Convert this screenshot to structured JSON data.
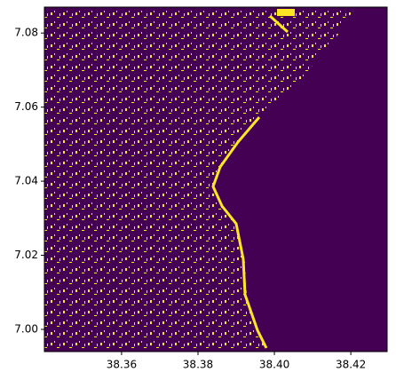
{
  "chart_data": {
    "type": "image",
    "xlim": [
      38.3398,
      38.4295
    ],
    "ylim": [
      6.994,
      7.087
    ],
    "xticks": [
      38.36,
      38.38,
      {
        "value": 38.4,
        "label": "38.40"
      },
      38.42
    ],
    "yticks": [
      {
        "value": 7,
        "label": "7.00"
      },
      7.02,
      7.04,
      7.06,
      7.08
    ],
    "colors": [
      "#440154",
      "#fde725"
    ]
  }
}
